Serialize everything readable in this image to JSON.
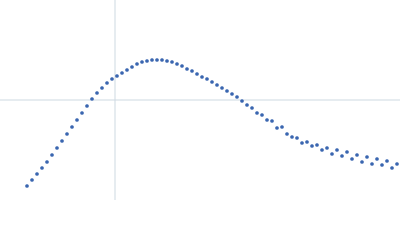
{
  "chart_data": {
    "type": "scatter",
    "color": "#3a66b0",
    "grid": true,
    "xlim": [
      0,
      400
    ],
    "ylim": [
      0,
      200
    ],
    "xticks": [
      115
    ],
    "yticks": [
      100
    ],
    "x": [
      27,
      32,
      37,
      42,
      47,
      52,
      57,
      62,
      67,
      72,
      77,
      82,
      87,
      92,
      97,
      102,
      107,
      112,
      117,
      122,
      127,
      132,
      137,
      142,
      147,
      152,
      157,
      162,
      167,
      172,
      177,
      182,
      187,
      192,
      197,
      202,
      207,
      212,
      217,
      222,
      227,
      232,
      237,
      242,
      247,
      252,
      257,
      262,
      267,
      272,
      277,
      282,
      287,
      292,
      297,
      302,
      307,
      312,
      317,
      322,
      327,
      332,
      337,
      342,
      347,
      352,
      357,
      362,
      367,
      372,
      377,
      382,
      387,
      392,
      397
    ],
    "y": [
      14,
      20,
      26,
      32,
      38,
      45,
      52,
      59,
      66,
      73,
      80,
      87,
      94,
      101,
      107,
      112,
      117,
      121,
      124,
      127,
      130,
      133,
      136,
      138,
      139,
      140,
      140,
      140,
      139,
      138,
      136,
      134,
      131,
      129,
      126,
      123,
      121,
      118,
      115,
      112,
      109,
      106,
      103,
      99,
      95,
      92,
      87,
      85,
      80,
      79,
      72,
      73,
      66,
      63,
      62,
      57,
      58,
      54,
      55,
      50,
      52,
      46,
      50,
      44,
      48,
      41,
      45,
      38,
      43,
      36,
      41,
      35,
      39,
      32,
      36
    ]
  }
}
